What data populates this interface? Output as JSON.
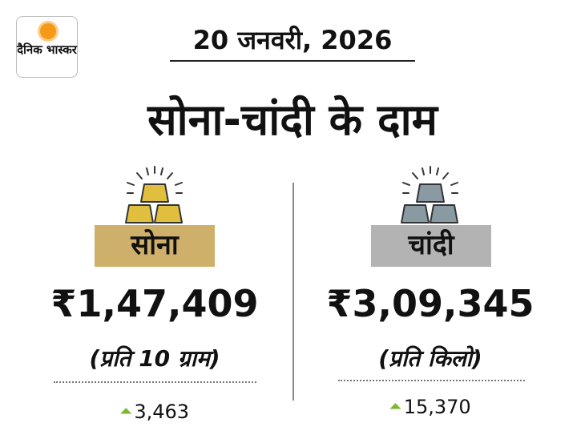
{
  "logo": {
    "text": "दैनिक भास्कर"
  },
  "date": "20 जनवरी, 2026",
  "title": "सोना-चांदी के दाम",
  "gold": {
    "label": "सोना",
    "price": "₹1,47,409",
    "unit": "(प्रति 10 ग्राम)",
    "change": "3,463",
    "change_direction": "up",
    "color": "#cfb06a",
    "icon": "gold-bars-icon"
  },
  "silver": {
    "label": "चांदी",
    "price": "₹3,09,345",
    "unit": "(प्रति किलो)",
    "change": "15,370",
    "change_direction": "up",
    "color": "#b3b3b3",
    "icon": "silver-bars-icon"
  },
  "colors": {
    "up_arrow": "#7cb82f"
  }
}
